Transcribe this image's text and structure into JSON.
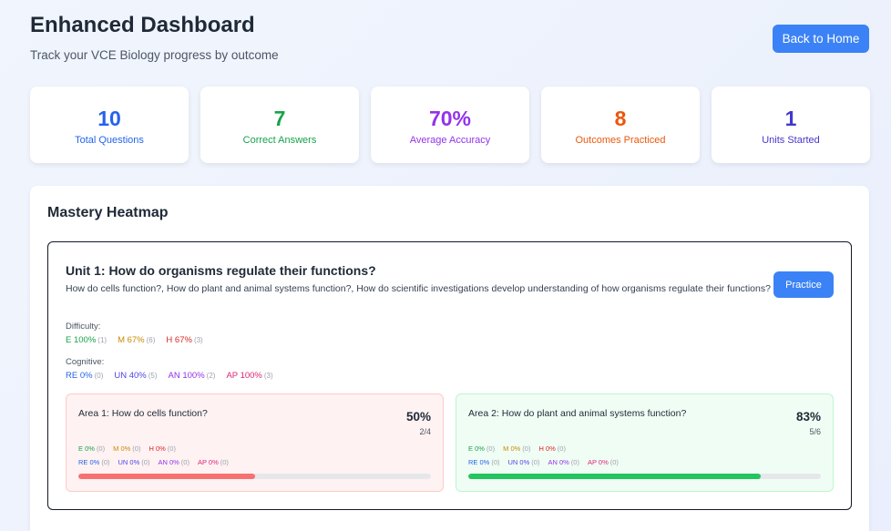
{
  "header": {
    "title": "Enhanced Dashboard",
    "subtitle": "Track your VCE Biology progress by outcome",
    "back_button": "Back to Home"
  },
  "stats": [
    {
      "value": "10",
      "label": "Total Questions",
      "color": "#2563eb"
    },
    {
      "value": "7",
      "label": "Correct Answers",
      "color": "#16a34a"
    },
    {
      "value": "70%",
      "label": "Average Accuracy",
      "color": "#9333ea"
    },
    {
      "value": "8",
      "label": "Outcomes Practiced",
      "color": "#ea580c"
    },
    {
      "value": "1",
      "label": "Units Started",
      "color": "#4338ca"
    }
  ],
  "heatmap": {
    "title": "Mastery Heatmap",
    "unit": {
      "title": "Unit 1: How do organisms regulate their functions?",
      "description": "How do cells function?, How do plant and animal systems function?, How do scientific investigations develop understanding of how organisms regulate their functions?",
      "practice_button": "Practice",
      "difficulty_label": "Difficulty:",
      "difficulty": [
        {
          "label": "E 100%",
          "count": "(1)"
        },
        {
          "label": "M 67%",
          "count": "(6)"
        },
        {
          "label": "H 67%",
          "count": "(3)"
        }
      ],
      "cognitive_label": "Cognitive:",
      "cognitive": [
        {
          "label": "RE 0%",
          "count": "(0)"
        },
        {
          "label": "UN 40%",
          "count": "(5)"
        },
        {
          "label": "AN 100%",
          "count": "(2)"
        },
        {
          "label": "AP 100%",
          "count": "(3)"
        }
      ],
      "areas": [
        {
          "title": "Area 1: How do cells function?",
          "percent": "50%",
          "fraction": "2/4",
          "progress": 0.5,
          "bar_color": "#f87171",
          "difficulty": [
            {
              "label": "E 0%",
              "count": "(0)"
            },
            {
              "label": "M 0%",
              "count": "(0)"
            },
            {
              "label": "H 0%",
              "count": "(0)"
            }
          ],
          "cognitive": [
            {
              "label": "RE 0%",
              "count": "(0)"
            },
            {
              "label": "UN 0%",
              "count": "(0)"
            },
            {
              "label": "AN 0%",
              "count": "(0)"
            },
            {
              "label": "AP 0%",
              "count": "(0)"
            }
          ]
        },
        {
          "title": "Area 2: How do plant and animal systems function?",
          "percent": "83%",
          "fraction": "5/6",
          "progress": 0.83,
          "bar_color": "#22c55e",
          "difficulty": [
            {
              "label": "E 0%",
              "count": "(0)"
            },
            {
              "label": "M 0%",
              "count": "(0)"
            },
            {
              "label": "H 0%",
              "count": "(0)"
            }
          ],
          "cognitive": [
            {
              "label": "RE 0%",
              "count": "(0)"
            },
            {
              "label": "UN 0%",
              "count": "(0)"
            },
            {
              "label": "AN 0%",
              "count": "(0)"
            },
            {
              "label": "AP 0%",
              "count": "(0)"
            }
          ]
        }
      ]
    }
  }
}
